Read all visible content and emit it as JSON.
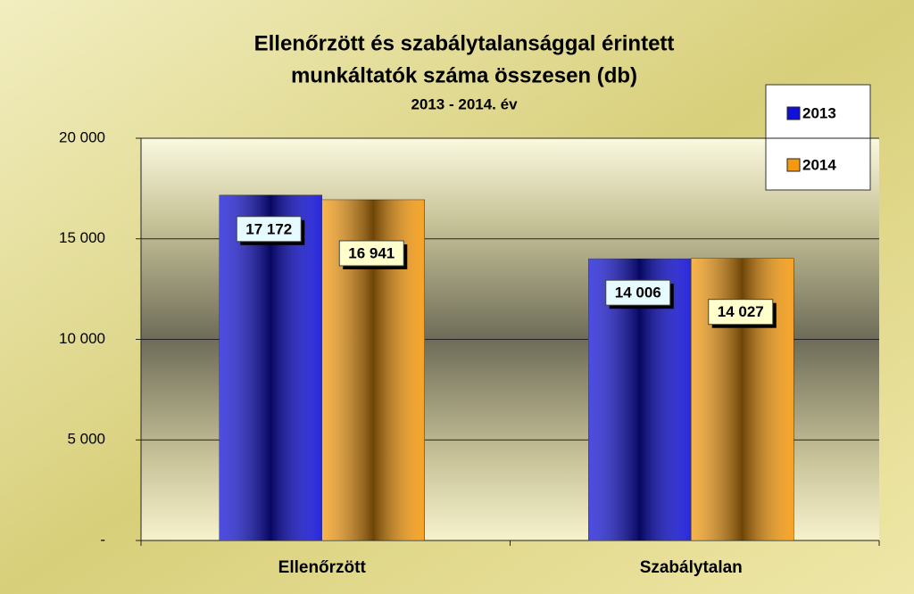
{
  "chart_data": {
    "type": "bar",
    "title": [
      "Ellenőrzött és szabálytalansággal érintett",
      "munkáltatók száma összesen (db)"
    ],
    "subtitle": "2013 - 2014. év",
    "categories": [
      "Ellenőrzött",
      "Szabálytalan"
    ],
    "series": [
      {
        "name": "2013",
        "color": "#1010d8",
        "values": [
          17172,
          14006
        ],
        "value_labels": [
          "17 172",
          "14 006"
        ]
      },
      {
        "name": "2014",
        "color": "#f59a10",
        "values": [
          16941,
          14027
        ],
        "value_labels": [
          "16 941",
          "14 027"
        ]
      }
    ],
    "ylim": [
      0,
      20000
    ],
    "yticks": [
      {
        "value": 0,
        "label": "-"
      },
      {
        "value": 5000,
        "label": "5 000"
      },
      {
        "value": 10000,
        "label": "10 000"
      },
      {
        "value": 15000,
        "label": "15 000"
      },
      {
        "value": 20000,
        "label": "20 000"
      }
    ],
    "grid": true,
    "legend": "top-right"
  }
}
